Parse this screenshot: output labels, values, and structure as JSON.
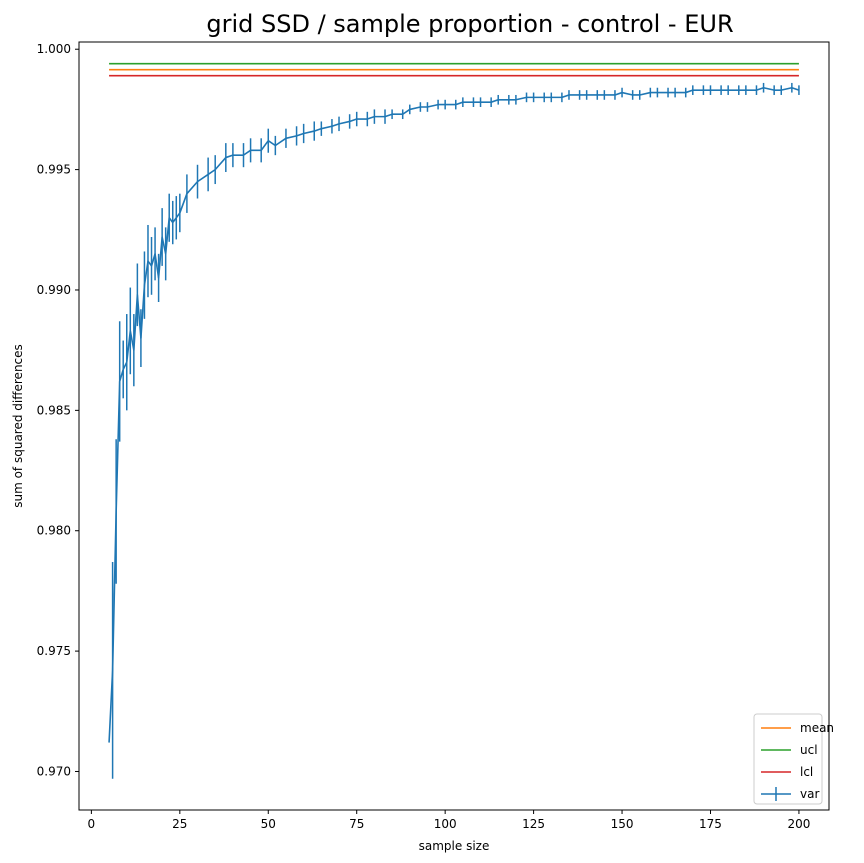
{
  "chart_data": {
    "type": "line",
    "title": "grid SSD / sample proportion - control - EUR",
    "xlabel": "sample size",
    "ylabel": "sum of squared differences",
    "xlim": [
      -3.5,
      208.5
    ],
    "ylim": [
      0.9684,
      1.0003
    ],
    "xticks": [
      0,
      25,
      50,
      75,
      100,
      125,
      150,
      175,
      200
    ],
    "yticks": [
      0.97,
      0.975,
      0.98,
      0.985,
      0.99,
      0.995,
      1.0
    ],
    "ytick_labels": [
      "0.970",
      "0.975",
      "0.980",
      "0.985",
      "0.990",
      "0.995",
      "1.000"
    ],
    "grid": false,
    "legend_position": "bottom-right",
    "reference_lines": [
      {
        "name": "mean",
        "y": 0.99915,
        "x_range": [
          5,
          200
        ],
        "color": "#ff7f0e"
      },
      {
        "name": "ucl",
        "y": 0.9994,
        "x_range": [
          5,
          200
        ],
        "color": "#2ca02c"
      },
      {
        "name": "lcl",
        "y": 0.9989,
        "x_range": [
          5,
          200
        ],
        "color": "#d62728"
      }
    ],
    "series": [
      {
        "name": "var",
        "color": "#1f77b4",
        "errorbar": true,
        "x": [
          5,
          6,
          7,
          8,
          9,
          10,
          11,
          12,
          13,
          14,
          15,
          16,
          17,
          18,
          19,
          20,
          21,
          22,
          23,
          24,
          25,
          27,
          30,
          33,
          35,
          38,
          40,
          43,
          45,
          48,
          50,
          52,
          55,
          58,
          60,
          63,
          65,
          68,
          70,
          73,
          75,
          78,
          80,
          83,
          85,
          88,
          90,
          93,
          95,
          98,
          100,
          103,
          105,
          108,
          110,
          113,
          115,
          118,
          120,
          123,
          125,
          128,
          130,
          133,
          135,
          138,
          140,
          143,
          145,
          148,
          150,
          153,
          155,
          158,
          160,
          163,
          165,
          168,
          170,
          173,
          175,
          178,
          180,
          183,
          185,
          188,
          190,
          193,
          195,
          198,
          200
        ],
        "y": [
          0.9712,
          0.9742,
          0.9808,
          0.9862,
          0.9867,
          0.987,
          0.9883,
          0.9875,
          0.9898,
          0.988,
          0.9902,
          0.9912,
          0.991,
          0.9915,
          0.9905,
          0.9922,
          0.9915,
          0.993,
          0.9928,
          0.993,
          0.9932,
          0.994,
          0.9945,
          0.9948,
          0.995,
          0.9955,
          0.9956,
          0.9956,
          0.9958,
          0.9958,
          0.9962,
          0.996,
          0.9963,
          0.9964,
          0.9965,
          0.9966,
          0.9967,
          0.9968,
          0.9969,
          0.997,
          0.9971,
          0.9971,
          0.9972,
          0.9972,
          0.9973,
          0.9973,
          0.9975,
          0.9976,
          0.9976,
          0.9977,
          0.9977,
          0.9977,
          0.9978,
          0.9978,
          0.9978,
          0.9978,
          0.9979,
          0.9979,
          0.9979,
          0.998,
          0.998,
          0.998,
          0.998,
          0.998,
          0.9981,
          0.9981,
          0.9981,
          0.9981,
          0.9981,
          0.9981,
          0.9982,
          0.9981,
          0.9981,
          0.9982,
          0.9982,
          0.9982,
          0.9982,
          0.9982,
          0.9983,
          0.9983,
          0.9983,
          0.9983,
          0.9983,
          0.9983,
          0.9983,
          0.9983,
          0.9984,
          0.9983,
          0.9983,
          0.9984,
          0.9983
        ],
        "err": [
          0.0,
          0.0045,
          0.003,
          0.0025,
          0.0012,
          0.002,
          0.0018,
          0.0015,
          0.0013,
          0.0012,
          0.0014,
          0.0015,
          0.0012,
          0.0011,
          0.001,
          0.0012,
          0.0011,
          0.001,
          0.0009,
          0.0009,
          0.0008,
          0.0008,
          0.0007,
          0.0007,
          0.0006,
          0.0006,
          0.0005,
          0.0005,
          0.0005,
          0.0005,
          0.0005,
          0.0004,
          0.0004,
          0.0004,
          0.0004,
          0.0004,
          0.0003,
          0.0003,
          0.0003,
          0.0003,
          0.0003,
          0.0003,
          0.0003,
          0.0003,
          0.0002,
          0.0002,
          0.0002,
          0.0002,
          0.0002,
          0.0002,
          0.0002,
          0.0002,
          0.0002,
          0.0002,
          0.0002,
          0.0002,
          0.0002,
          0.0002,
          0.0002,
          0.0002,
          0.0002,
          0.0002,
          0.0002,
          0.0002,
          0.0002,
          0.0002,
          0.0002,
          0.0002,
          0.0002,
          0.0002,
          0.0002,
          0.0002,
          0.0002,
          0.0002,
          0.0002,
          0.0002,
          0.0002,
          0.0002,
          0.0002,
          0.0002,
          0.0002,
          0.0002,
          0.0002,
          0.0002,
          0.0002,
          0.0002,
          0.0002,
          0.0002,
          0.0002,
          0.0002,
          0.0002
        ]
      }
    ]
  }
}
